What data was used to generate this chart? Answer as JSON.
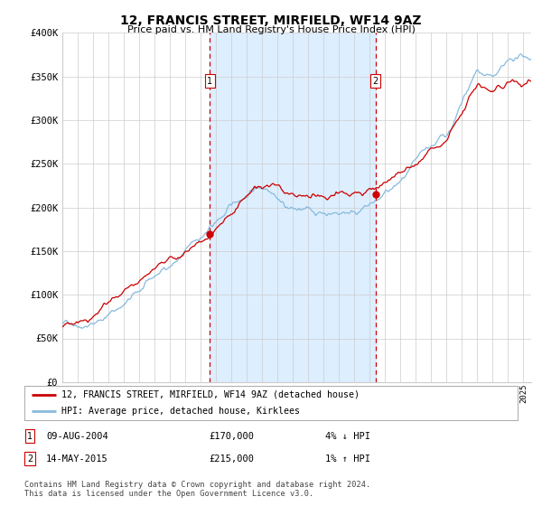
{
  "title": "12, FRANCIS STREET, MIRFIELD, WF14 9AZ",
  "subtitle": "Price paid vs. HM Land Registry's House Price Index (HPI)",
  "background_color": "#ffffff",
  "plot_bg_color": "#ffffff",
  "shaded_region_color": "#ddeeff",
  "grid_color": "#cccccc",
  "hpi_line_color": "#88bbdd",
  "price_line_color": "#cc0000",
  "marker_color": "#cc0000",
  "vline_color": "#cc0000",
  "ylim": [
    0,
    400000
  ],
  "yticks": [
    0,
    50000,
    100000,
    150000,
    200000,
    250000,
    300000,
    350000,
    400000
  ],
  "ytick_labels": [
    "£0",
    "£50K",
    "£100K",
    "£150K",
    "£200K",
    "£250K",
    "£300K",
    "£350K",
    "£400K"
  ],
  "sale1_date": 2004.6,
  "sale1_price": 170000,
  "sale1_label": "09-AUG-2004",
  "sale1_amount": "£170,000",
  "sale1_hpi": "4% ↓ HPI",
  "sale2_date": 2015.37,
  "sale2_price": 215000,
  "sale2_label": "14-MAY-2015",
  "sale2_amount": "£215,000",
  "sale2_hpi": "1% ↑ HPI",
  "legend_label1": "12, FRANCIS STREET, MIRFIELD, WF14 9AZ (detached house)",
  "legend_label2": "HPI: Average price, detached house, Kirklees",
  "footnote": "Contains HM Land Registry data © Crown copyright and database right 2024.\nThis data is licensed under the Open Government Licence v3.0.",
  "xstart": 1995.0,
  "xend": 2025.5
}
